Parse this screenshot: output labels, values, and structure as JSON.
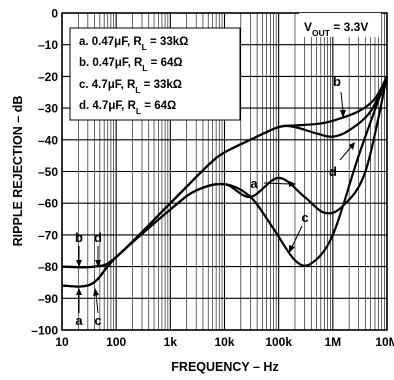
{
  "chart_data": {
    "type": "line",
    "title": "",
    "xlabel": "FREQUENCY – Hz",
    "ylabel": "RIPPLE REJECTION – dB",
    "x_scale": "log",
    "xlim": [
      10,
      10000000
    ],
    "ylim": [
      -100,
      0
    ],
    "grid": true,
    "x_ticks": [
      {
        "value": 10,
        "label": "10"
      },
      {
        "value": 100,
        "label": "100"
      },
      {
        "value": 1000,
        "label": "1k"
      },
      {
        "value": 10000,
        "label": "10k"
      },
      {
        "value": 100000,
        "label": "100k"
      },
      {
        "value": 1000000,
        "label": "1M"
      },
      {
        "value": 10000000,
        "label": "10M"
      }
    ],
    "y_ticks": [
      {
        "value": 0,
        "label": "0"
      },
      {
        "value": -10,
        "label": "–10"
      },
      {
        "value": -20,
        "label": "–20"
      },
      {
        "value": -30,
        "label": "–30"
      },
      {
        "value": -40,
        "label": "–40"
      },
      {
        "value": -50,
        "label": "–50"
      },
      {
        "value": -60,
        "label": "–60"
      },
      {
        "value": -70,
        "label": "–70"
      },
      {
        "value": -80,
        "label": "–80"
      },
      {
        "value": -90,
        "label": "–90"
      },
      {
        "value": -100,
        "label": "–100"
      }
    ],
    "condition_box": {
      "prefix": "V",
      "sub": "OUT",
      "suffix": " = 3.3V"
    },
    "legend": [
      {
        "prefix": "a. 0.47μF, R",
        "sub": "L",
        "suffix": " = 33kΩ"
      },
      {
        "prefix": "b. 0.47μF, R",
        "sub": "L",
        "suffix": " = 64Ω"
      },
      {
        "prefix": "c. 4.7μF, R",
        "sub": "L",
        "suffix": " = 33kΩ"
      },
      {
        "prefix": "d. 4.7μF, R",
        "sub": "L",
        "suffix": " = 64Ω"
      }
    ],
    "series": [
      {
        "name": "a",
        "points": [
          [
            10,
            -86
          ],
          [
            35,
            -85.5
          ],
          [
            100,
            -77
          ],
          [
            1000,
            -62
          ],
          [
            3000,
            -56
          ],
          [
            10000,
            -54
          ],
          [
            30000,
            -58
          ],
          [
            100000,
            -52
          ],
          [
            300000,
            -58
          ],
          [
            700000,
            -63
          ],
          [
            1500000,
            -61
          ],
          [
            4000000,
            -50
          ],
          [
            10000000,
            -20
          ]
        ]
      },
      {
        "name": "b",
        "points": [
          [
            10,
            -80
          ],
          [
            40,
            -80
          ],
          [
            100,
            -77
          ],
          [
            1000,
            -60
          ],
          [
            5000,
            -48
          ],
          [
            10000,
            -44
          ],
          [
            30000,
            -40
          ],
          [
            100000,
            -36
          ],
          [
            200000,
            -35.5
          ],
          [
            500000,
            -35
          ],
          [
            1000000,
            -34
          ],
          [
            3000000,
            -31
          ],
          [
            6000000,
            -27
          ],
          [
            10000000,
            -20
          ]
        ]
      },
      {
        "name": "c",
        "points": [
          [
            10,
            -86
          ],
          [
            35,
            -85.5
          ],
          [
            100,
            -77
          ],
          [
            1000,
            -62
          ],
          [
            3000,
            -56
          ],
          [
            10000,
            -54
          ],
          [
            30000,
            -58
          ],
          [
            80000,
            -68
          ],
          [
            200000,
            -78
          ],
          [
            400000,
            -79
          ],
          [
            1000000,
            -70
          ],
          [
            3000000,
            -45
          ],
          [
            10000000,
            -20
          ]
        ]
      },
      {
        "name": "d",
        "points": [
          [
            10,
            -80
          ],
          [
            40,
            -80
          ],
          [
            100,
            -77
          ],
          [
            1000,
            -60
          ],
          [
            5000,
            -48
          ],
          [
            10000,
            -44
          ],
          [
            30000,
            -40
          ],
          [
            100000,
            -36
          ],
          [
            200000,
            -36
          ],
          [
            500000,
            -38
          ],
          [
            1000000,
            -39
          ],
          [
            2000000,
            -37
          ],
          [
            5000000,
            -31
          ],
          [
            10000000,
            -20
          ]
        ]
      }
    ],
    "annotations": [
      {
        "text": "a",
        "x": 3000000,
        "y": -50
      },
      {
        "text": "b",
        "x": 3000000,
        "y": -30
      },
      {
        "text": "c",
        "x": 3000000,
        "y": -45
      },
      {
        "text": "d",
        "x": 3000000,
        "y": -37
      },
      {
        "text": "a",
        "x": 14,
        "y": -95
      },
      {
        "text": "b",
        "x": 14,
        "y": -75
      },
      {
        "text": "c",
        "x": 33,
        "y": -95
      },
      {
        "text": "d",
        "x": 33,
        "y": -75
      }
    ]
  }
}
